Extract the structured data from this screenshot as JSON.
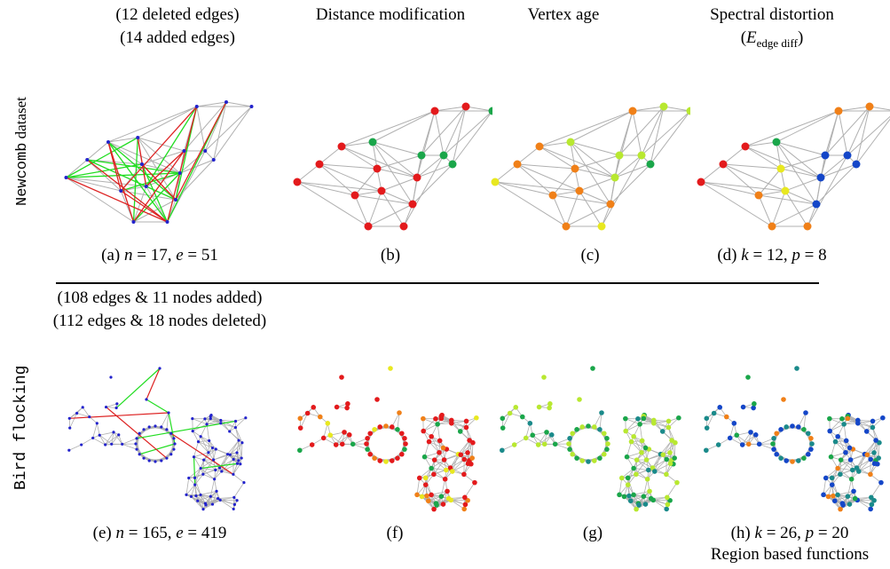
{
  "colors": {
    "edge": "#b0b0b0",
    "added": "#22dd22",
    "deleted": "#dd2222",
    "vertex": "#2222cc",
    "red": "#e31a1c",
    "orange": "#f08018",
    "yellow": "#e8e820",
    "yellowgreen": "#b8e830",
    "green": "#1aa64a",
    "blue": "#1446c8",
    "teal": "#1a8a8a"
  },
  "top": {
    "row_label_mono": "Newcomb",
    "row_label_rest": " dataset",
    "header_a_line1": "(12 deleted edges)",
    "header_a_line2": "(14 added edges)",
    "header_b": "Distance modification",
    "header_c": "Vertex age",
    "header_d_line1": "Spectral distortion",
    "header_d_E": "E",
    "header_d_sub": "edge diff",
    "caption_a_prefix": "(a) ",
    "caption_a_n": "n",
    "caption_a_mid": " = 17, ",
    "caption_a_e": "e",
    "caption_a_end": " = 51",
    "caption_b": "(b)",
    "caption_c": "(c)",
    "caption_d_prefix": "(d) ",
    "caption_d_k": "k",
    "caption_d_mid": " = 12, ",
    "caption_d_p": "p",
    "caption_d_end": " = 8"
  },
  "bottom": {
    "row_label": "Bird flocking",
    "header_e_line1": "(108 edges & 11 nodes added)",
    "header_e_line2": "(112 edges & 18 nodes deleted)",
    "caption_e_prefix": "(e) ",
    "caption_e_n": "n",
    "caption_e_mid": " = 165, ",
    "caption_e_e": "e",
    "caption_e_end": " = 419",
    "caption_f": "(f)",
    "caption_g": "(g)",
    "caption_h_prefix": "(h) ",
    "caption_h_k": "k",
    "caption_h_mid": " = 26, ",
    "caption_h_p": "p",
    "caption_h_end": " = 20",
    "footer": "Region based functions"
  }
}
